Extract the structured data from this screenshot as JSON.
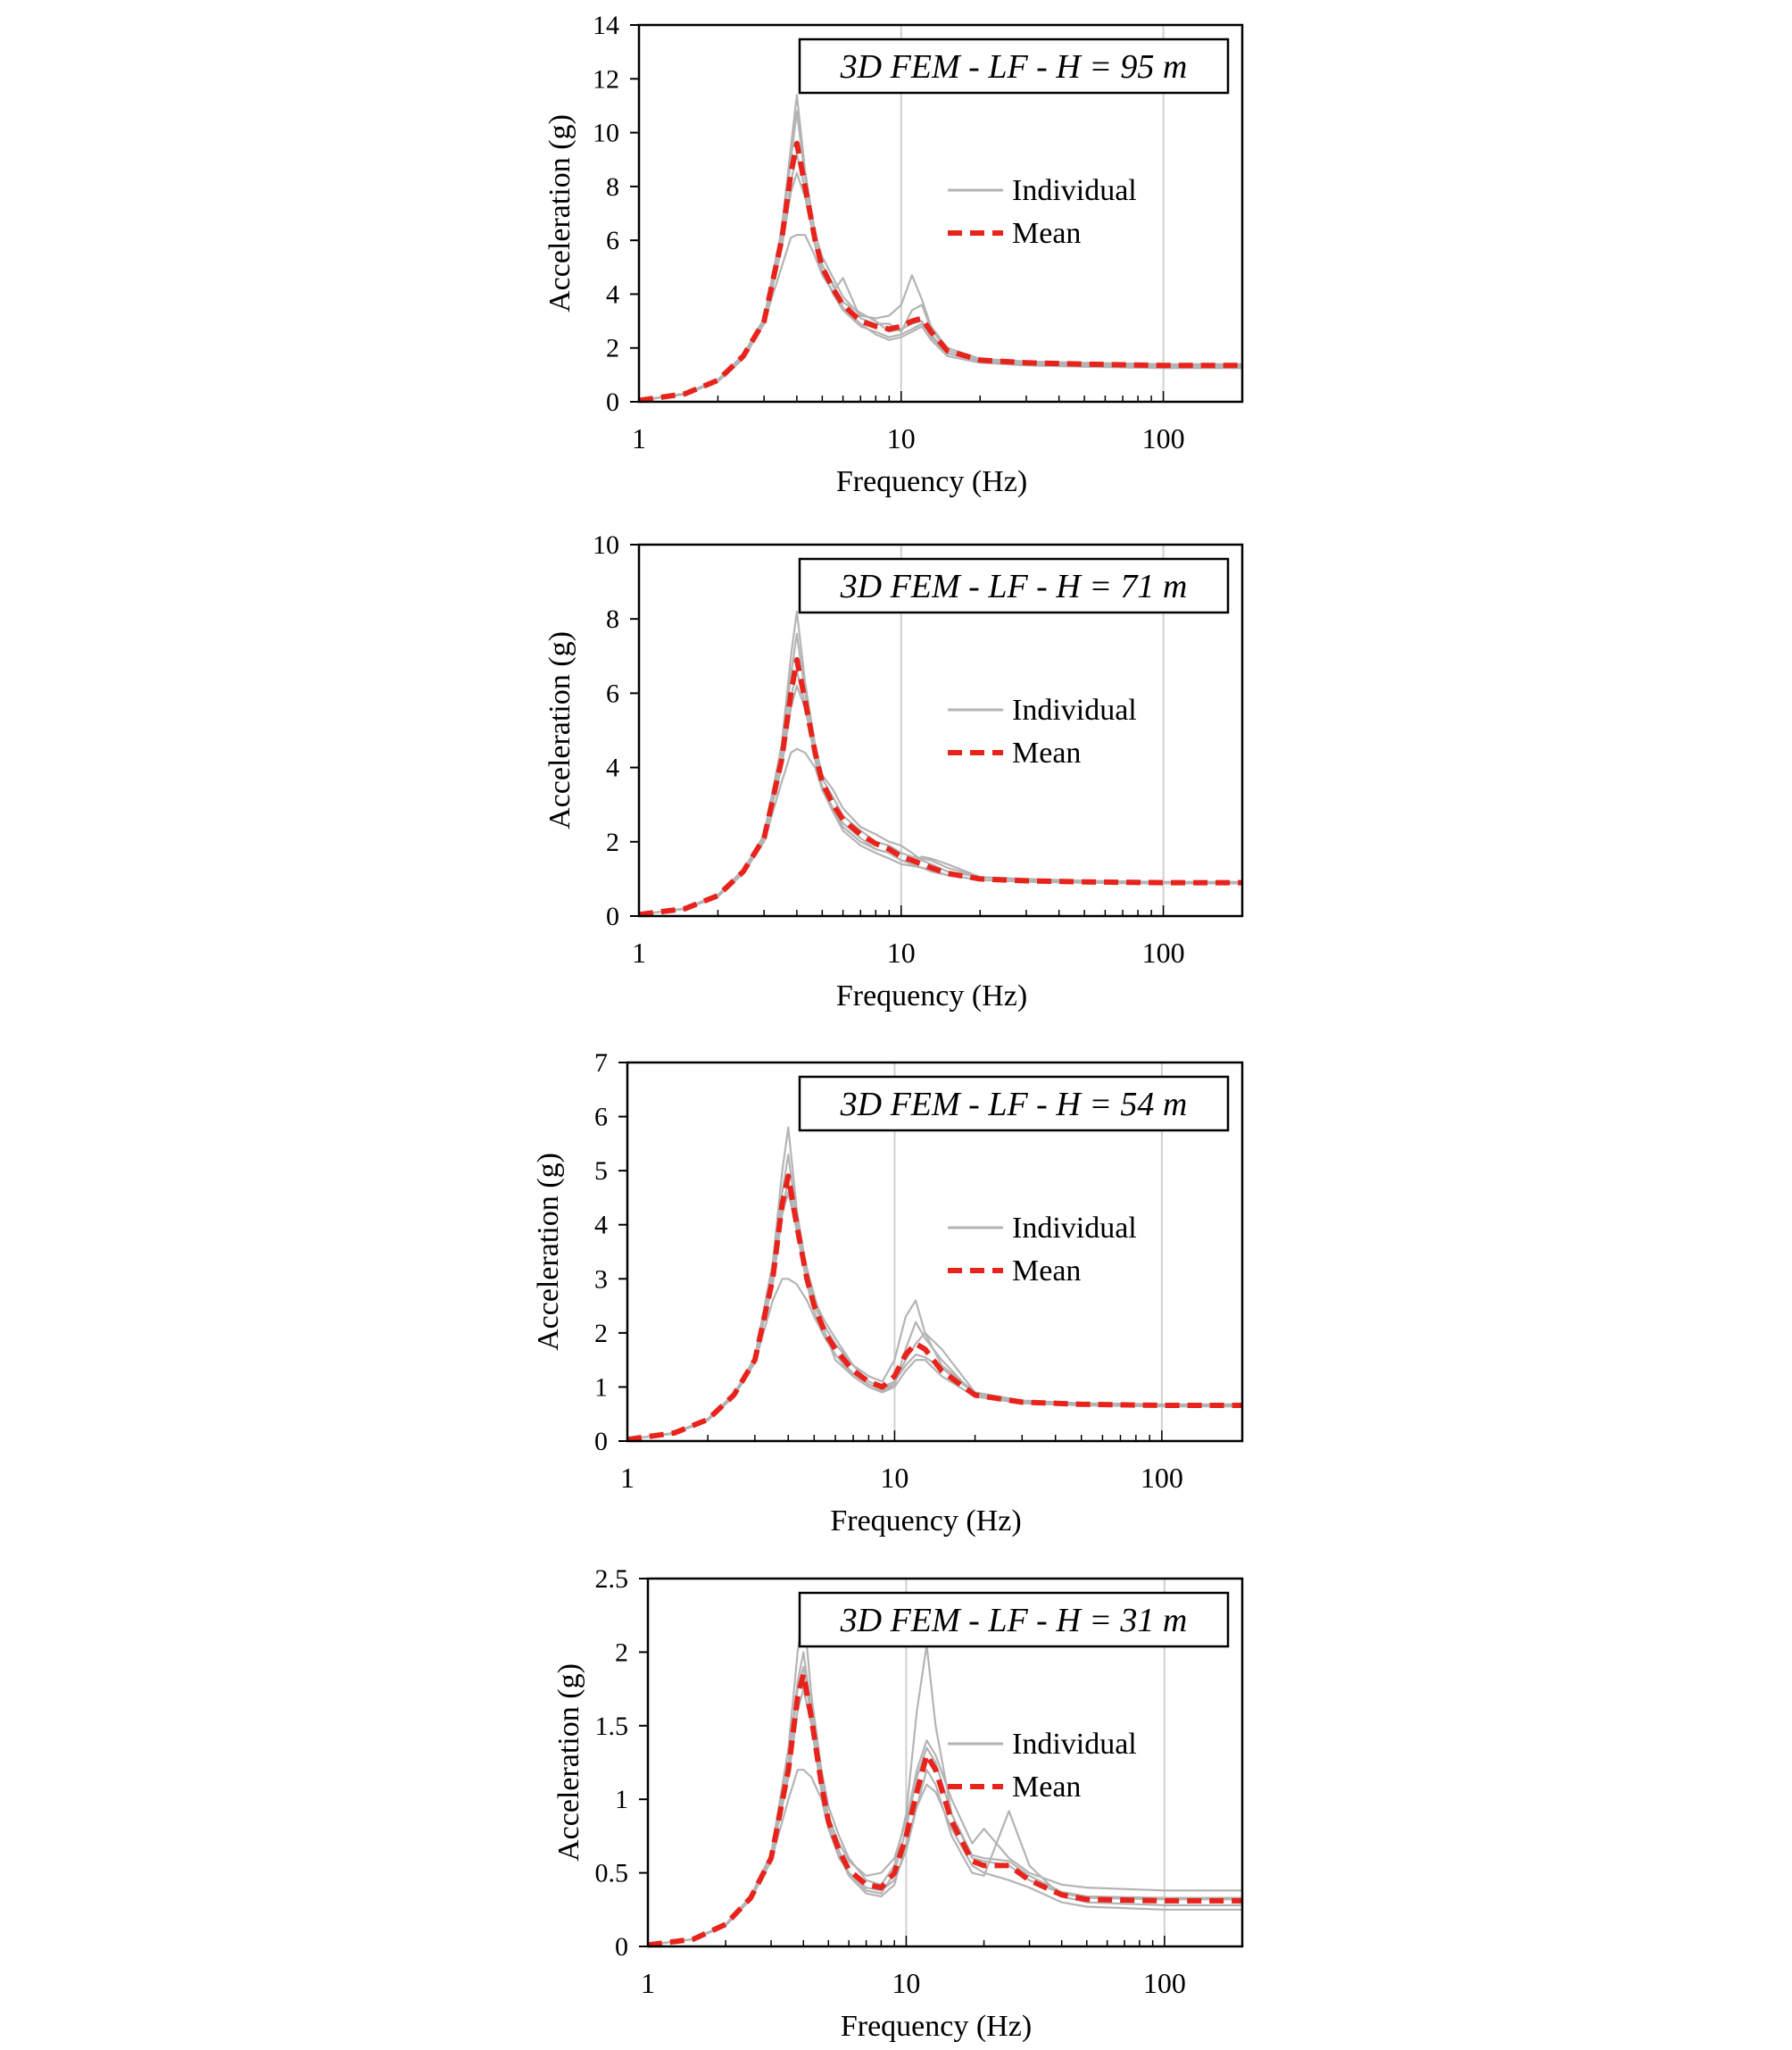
{
  "chart_data": [
    {
      "type": "line",
      "title": "3D FEM - LF - H = 95 m",
      "xlabel": "Frequency (Hz)",
      "ylabel": "Acceleration (g)",
      "x_scale": "log",
      "xlim": [
        1,
        200
      ],
      "ylim": [
        0,
        14
      ],
      "x_ticks": [
        "1",
        "10",
        "100"
      ],
      "y_ticks": [
        "0",
        "2",
        "4",
        "6",
        "8",
        "10",
        "12",
        "14"
      ],
      "legend": {
        "position": "top-right",
        "entries": [
          "Individual",
          "Mean"
        ]
      },
      "x": [
        1,
        1.5,
        2,
        2.5,
        3,
        3.5,
        3.8,
        4,
        4.3,
        4.7,
        5,
        5.5,
        6,
        7,
        8,
        9,
        10,
        11,
        12,
        13,
        15,
        20,
        30,
        50,
        100,
        200
      ],
      "series": [
        {
          "name": "Mean",
          "values": [
            0.05,
            0.3,
            0.8,
            1.7,
            3.0,
            6.0,
            8.5,
            9.6,
            8.0,
            6.0,
            5.0,
            4.2,
            3.6,
            3.0,
            2.8,
            2.7,
            2.8,
            3.0,
            3.1,
            2.6,
            1.9,
            1.55,
            1.45,
            1.4,
            1.35,
            1.35
          ]
        },
        {
          "name": "",
          "values": [
            0.05,
            0.3,
            0.8,
            1.7,
            3.1,
            6.4,
            9.5,
            11.4,
            8.6,
            6.2,
            5.4,
            4.6,
            3.9,
            3.2,
            3.1,
            3.2,
            3.6,
            4.7,
            3.8,
            2.8,
            2.0,
            1.6,
            1.5,
            1.45,
            1.4,
            1.4
          ]
        },
        {
          "name": "",
          "values": [
            0.05,
            0.28,
            0.75,
            1.6,
            2.9,
            5.7,
            7.8,
            8.5,
            7.6,
            5.9,
            4.9,
            4.0,
            3.4,
            2.8,
            2.6,
            2.4,
            2.5,
            2.7,
            2.9,
            2.5,
            1.8,
            1.5,
            1.4,
            1.35,
            1.3,
            1.3
          ]
        },
        {
          "name": "",
          "values": [
            0.05,
            0.29,
            0.78,
            1.65,
            2.95,
            5.0,
            6.1,
            6.2,
            6.2,
            5.4,
            4.7,
            4.1,
            4.6,
            3.1,
            2.9,
            2.9,
            2.6,
            3.4,
            3.6,
            2.7,
            1.9,
            1.55,
            1.45,
            1.4,
            1.35,
            1.35
          ]
        },
        {
          "name": "",
          "values": [
            0.05,
            0.31,
            0.82,
            1.75,
            3.1,
            6.2,
            9.0,
            10.8,
            8.3,
            6.3,
            5.1,
            4.3,
            3.7,
            3.3,
            3.0,
            2.6,
            2.7,
            2.9,
            3.0,
            2.4,
            1.8,
            1.5,
            1.4,
            1.35,
            1.3,
            1.3
          ]
        },
        {
          "name": "",
          "values": [
            0.05,
            0.3,
            0.8,
            1.7,
            3.0,
            5.8,
            8.2,
            9.2,
            7.9,
            5.8,
            4.8,
            4.4,
            3.5,
            2.9,
            2.5,
            2.3,
            2.4,
            2.6,
            2.8,
            2.3,
            1.7,
            1.45,
            1.35,
            1.3,
            1.25,
            1.25
          ]
        }
      ]
    },
    {
      "type": "line",
      "title": "3D FEM - LF - H = 71 m",
      "xlabel": "Frequency (Hz)",
      "ylabel": "Acceleration (g)",
      "x_scale": "log",
      "xlim": [
        1,
        200
      ],
      "ylim": [
        0,
        10
      ],
      "x_ticks": [
        "1",
        "10",
        "100"
      ],
      "y_ticks": [
        "0",
        "2",
        "4",
        "6",
        "8",
        "10"
      ],
      "legend": {
        "position": "top-right",
        "entries": [
          "Individual",
          "Mean"
        ]
      },
      "x": [
        1,
        1.5,
        2,
        2.5,
        3,
        3.5,
        3.8,
        4,
        4.3,
        4.7,
        5,
        5.5,
        6,
        7,
        8,
        9,
        10,
        11,
        12,
        13,
        15,
        20,
        30,
        50,
        100,
        200
      ],
      "series": [
        {
          "name": "Mean",
          "values": [
            0.04,
            0.2,
            0.55,
            1.2,
            2.1,
            4.2,
            6.0,
            6.9,
            5.8,
            4.4,
            3.6,
            3.0,
            2.6,
            2.2,
            1.95,
            1.8,
            1.6,
            1.5,
            1.4,
            1.3,
            1.15,
            1.0,
            0.95,
            0.92,
            0.9,
            0.9
          ]
        },
        {
          "name": "",
          "values": [
            0.04,
            0.2,
            0.55,
            1.2,
            2.2,
            4.6,
            7.0,
            8.2,
            6.3,
            4.6,
            3.8,
            3.4,
            2.9,
            2.4,
            2.2,
            2.0,
            1.9,
            1.7,
            1.5,
            1.4,
            1.2,
            1.05,
            1.0,
            0.95,
            0.92,
            0.92
          ]
        },
        {
          "name": "",
          "values": [
            0.04,
            0.19,
            0.52,
            1.15,
            2.0,
            3.6,
            4.4,
            4.5,
            4.4,
            4.0,
            3.4,
            2.9,
            2.5,
            2.1,
            1.8,
            1.7,
            1.5,
            1.4,
            1.3,
            1.2,
            1.1,
            0.98,
            0.92,
            0.9,
            0.88,
            0.88
          ]
        },
        {
          "name": "",
          "values": [
            0.04,
            0.21,
            0.57,
            1.25,
            2.15,
            4.3,
            6.5,
            7.6,
            6.0,
            4.5,
            3.7,
            3.2,
            2.7,
            2.3,
            2.0,
            1.9,
            1.7,
            1.6,
            1.55,
            1.5,
            1.3,
            1.05,
            0.97,
            0.93,
            0.9,
            0.9
          ]
        },
        {
          "name": "",
          "values": [
            0.04,
            0.2,
            0.55,
            1.2,
            2.1,
            4.0,
            5.6,
            6.2,
            5.6,
            4.3,
            3.5,
            2.9,
            2.4,
            2.0,
            1.8,
            1.7,
            1.5,
            1.45,
            1.6,
            1.55,
            1.4,
            1.05,
            0.95,
            0.92,
            0.9,
            0.9
          ]
        },
        {
          "name": "",
          "values": [
            0.04,
            0.2,
            0.54,
            1.18,
            2.05,
            4.1,
            5.9,
            6.6,
            5.7,
            4.2,
            3.4,
            2.8,
            2.3,
            1.9,
            1.7,
            1.55,
            1.4,
            1.35,
            1.3,
            1.25,
            1.1,
            0.97,
            0.93,
            0.9,
            0.88,
            0.88
          ]
        }
      ]
    },
    {
      "type": "line",
      "title": "3D FEM - LF - H = 54 m",
      "xlabel": "Frequency (Hz)",
      "ylabel": "Acceleration (g)",
      "x_scale": "log",
      "xlim": [
        1,
        200
      ],
      "ylim": [
        0,
        7
      ],
      "x_ticks": [
        "1",
        "10",
        "100"
      ],
      "y_ticks": [
        "0",
        "1",
        "2",
        "3",
        "4",
        "5",
        "6",
        "7"
      ],
      "legend": {
        "position": "top-right",
        "entries": [
          "Individual",
          "Mean"
        ]
      },
      "x": [
        1,
        1.5,
        2,
        2.5,
        3,
        3.5,
        3.8,
        4,
        4.3,
        4.7,
        5,
        5.5,
        6,
        7,
        8,
        9,
        10,
        11,
        12,
        13,
        15,
        20,
        30,
        50,
        100,
        200
      ],
      "series": [
        {
          "name": "Mean",
          "values": [
            0.03,
            0.15,
            0.4,
            0.85,
            1.5,
            3.0,
            4.4,
            4.9,
            4.0,
            3.0,
            2.5,
            2.0,
            1.7,
            1.3,
            1.1,
            1.0,
            1.2,
            1.6,
            1.8,
            1.7,
            1.3,
            0.85,
            0.72,
            0.68,
            0.66,
            0.66
          ]
        },
        {
          "name": "",
          "values": [
            0.03,
            0.15,
            0.4,
            0.85,
            1.55,
            3.3,
            5.0,
            5.8,
            4.3,
            3.1,
            2.6,
            2.2,
            1.9,
            1.4,
            1.2,
            1.1,
            1.5,
            2.3,
            2.6,
            2.0,
            1.4,
            0.9,
            0.75,
            0.7,
            0.68,
            0.68
          ]
        },
        {
          "name": "",
          "values": [
            0.03,
            0.14,
            0.38,
            0.82,
            1.45,
            2.6,
            3.0,
            3.0,
            2.9,
            2.6,
            2.3,
            1.9,
            1.6,
            1.2,
            1.0,
            0.9,
            1.0,
            1.3,
            1.5,
            1.5,
            1.2,
            0.82,
            0.7,
            0.66,
            0.64,
            0.64
          ]
        },
        {
          "name": "",
          "values": [
            0.03,
            0.15,
            0.41,
            0.87,
            1.52,
            3.1,
            4.6,
            5.3,
            4.1,
            3.0,
            2.5,
            2.1,
            1.8,
            1.4,
            1.1,
            1.0,
            1.1,
            1.5,
            1.8,
            2.0,
            1.7,
            0.9,
            0.73,
            0.69,
            0.67,
            0.67
          ]
        },
        {
          "name": "",
          "values": [
            0.03,
            0.15,
            0.4,
            0.85,
            1.5,
            2.9,
            4.2,
            4.6,
            3.9,
            2.9,
            2.4,
            1.9,
            1.6,
            1.25,
            1.05,
            0.95,
            1.1,
            1.4,
            1.6,
            1.55,
            1.35,
            0.88,
            0.72,
            0.68,
            0.66,
            0.66
          ]
        },
        {
          "name": "",
          "values": [
            0.03,
            0.14,
            0.39,
            0.84,
            1.48,
            3.0,
            4.3,
            4.8,
            4.0,
            3.2,
            2.7,
            2.0,
            1.5,
            1.2,
            1.0,
            0.92,
            1.05,
            1.7,
            2.2,
            1.9,
            1.5,
            0.85,
            0.7,
            0.67,
            0.65,
            0.65
          ]
        }
      ]
    },
    {
      "type": "line",
      "title": "3D FEM - LF - H = 31 m",
      "xlabel": "Frequency (Hz)",
      "ylabel": "Acceleration (g)",
      "x_scale": "log",
      "xlim": [
        1,
        200
      ],
      "ylim": [
        0,
        2.5
      ],
      "x_ticks": [
        "1",
        "10",
        "100"
      ],
      "y_ticks": [
        "0",
        "0.5",
        "1",
        "1.5",
        "2",
        "2.5"
      ],
      "legend": {
        "position": "top-right",
        "entries": [
          "Individual",
          "Mean"
        ]
      },
      "x": [
        1,
        1.5,
        2,
        2.5,
        3,
        3.5,
        3.8,
        4,
        4.3,
        4.7,
        5,
        5.5,
        6,
        7,
        8,
        9,
        10,
        11,
        12,
        13,
        15,
        18,
        20,
        25,
        30,
        40,
        50,
        100,
        200
      ],
      "series": [
        {
          "name": "Mean",
          "values": [
            0.01,
            0.05,
            0.15,
            0.33,
            0.6,
            1.2,
            1.7,
            1.85,
            1.55,
            1.1,
            0.85,
            0.65,
            0.52,
            0.42,
            0.4,
            0.5,
            0.75,
            1.05,
            1.3,
            1.2,
            0.85,
            0.58,
            0.55,
            0.55,
            0.45,
            0.35,
            0.32,
            0.31,
            0.31
          ]
        },
        {
          "name": "",
          "values": [
            0.01,
            0.05,
            0.15,
            0.34,
            0.63,
            1.35,
            2.0,
            2.3,
            1.7,
            1.2,
            0.95,
            0.75,
            0.6,
            0.45,
            0.42,
            0.55,
            0.9,
            1.6,
            2.05,
            1.5,
            0.9,
            0.6,
            0.58,
            0.55,
            0.45,
            0.36,
            0.33,
            0.32,
            0.32
          ]
        },
        {
          "name": "",
          "values": [
            0.01,
            0.05,
            0.14,
            0.32,
            0.58,
            1.0,
            1.2,
            1.2,
            1.15,
            1.0,
            0.8,
            0.6,
            0.5,
            0.4,
            0.38,
            0.45,
            0.65,
            0.95,
            1.1,
            1.05,
            0.8,
            0.55,
            0.5,
            0.45,
            0.4,
            0.3,
            0.27,
            0.25,
            0.25
          ]
        },
        {
          "name": "",
          "values": [
            0.01,
            0.05,
            0.15,
            0.34,
            0.61,
            1.25,
            1.8,
            2.0,
            1.6,
            1.15,
            0.88,
            0.7,
            0.58,
            0.48,
            0.5,
            0.6,
            0.85,
            1.2,
            1.4,
            1.3,
            1.0,
            0.7,
            0.8,
            0.6,
            0.5,
            0.42,
            0.4,
            0.38,
            0.38
          ]
        },
        {
          "name": "",
          "values": [
            0.01,
            0.05,
            0.15,
            0.33,
            0.6,
            1.15,
            1.6,
            1.75,
            1.5,
            1.05,
            0.82,
            0.62,
            0.48,
            0.36,
            0.34,
            0.42,
            0.7,
            0.95,
            1.2,
            1.1,
            0.75,
            0.5,
            0.48,
            0.92,
            0.55,
            0.34,
            0.3,
            0.28,
            0.28
          ]
        },
        {
          "name": "",
          "values": [
            0.01,
            0.05,
            0.15,
            0.33,
            0.6,
            1.2,
            1.75,
            1.9,
            1.55,
            1.1,
            0.85,
            0.65,
            0.5,
            0.38,
            0.36,
            0.5,
            0.8,
            1.15,
            1.35,
            1.25,
            0.9,
            0.62,
            0.6,
            0.58,
            0.48,
            0.37,
            0.34,
            0.33,
            0.33
          ]
        }
      ]
    }
  ]
}
